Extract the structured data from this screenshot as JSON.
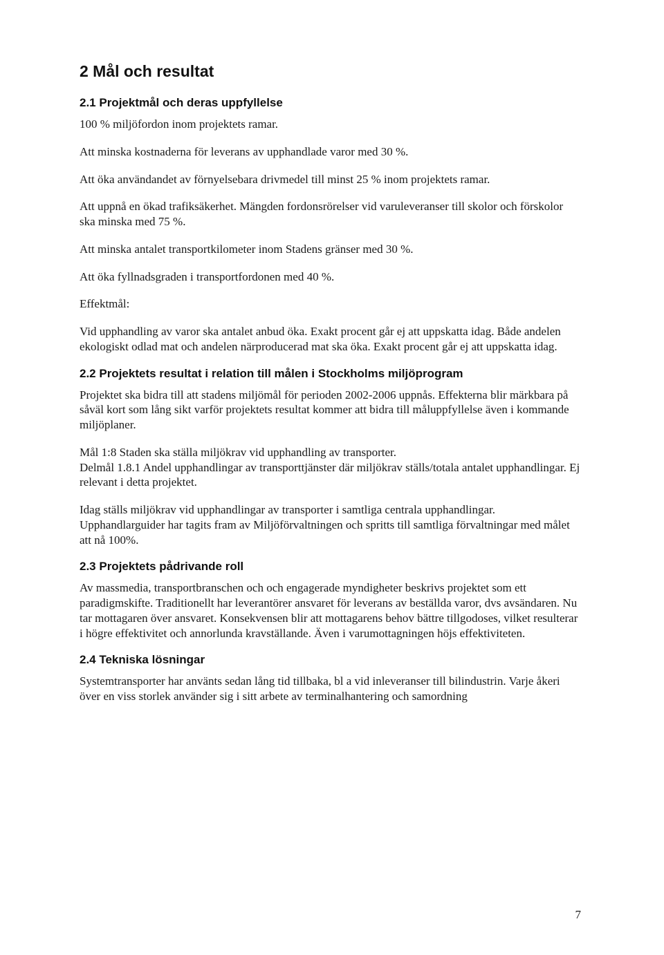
{
  "heading_main": "2 Mål och resultat",
  "s21": {
    "title": "2.1 Projektmål och deras uppfyllelse",
    "p1": "100 % miljöfordon inom projektets ramar.",
    "p2": "Att minska kostnaderna för leverans av upphandlade varor med 30 %.",
    "p3": "Att öka användandet av förnyelsebara drivmedel till minst 25 % inom projektets ramar.",
    "p4": "Att uppnå en ökad trafiksäkerhet. Mängden fordonsrörelser vid varuleveranser till skolor och förskolor ska minska med 75 %.",
    "p5": "Att minska antalet transportkilometer inom Stadens gränser med 30 %.",
    "p6": "Att öka fyllnadsgraden i transportfordonen med 40 %.",
    "p7": "Effektmål:",
    "p8": "Vid upphandling av varor ska antalet anbud öka. Exakt procent går ej att uppskatta idag. Både andelen ekologiskt odlad mat och andelen närproducerad mat ska öka. Exakt procent går ej att uppskatta idag."
  },
  "s22": {
    "title": "2.2 Projektets resultat i relation till målen i Stockholms miljöprogram",
    "p1": "Projektet ska bidra till att stadens miljömål för perioden 2002-2006 uppnås. Effekterna blir märkbara på såväl kort som lång sikt varför projektets resultat kommer att bidra till måluppfyllelse även i kommande miljöplaner.",
    "p2": "Mål 1:8 Staden ska ställa miljökrav vid upphandling av transporter.\nDelmål 1.8.1 Andel upphandlingar av transporttjänster där miljökrav ställs/totala antalet upphandlingar. Ej relevant i detta projektet.",
    "p3": "Idag ställs miljökrav vid upphandlingar av transporter i samtliga centrala upphandlingar. Upphandlarguider har tagits fram av Miljöförvaltningen och spritts till samtliga förvaltningar med målet att nå 100%."
  },
  "s23": {
    "title": "2.3 Projektets pådrivande roll",
    "p1": "Av massmedia, transportbranschen och och engagerade myndigheter beskrivs projektet som ett paradigmskifte. Traditionellt har leverantörer ansvaret för leverans av beställda varor, dvs avsändaren. Nu tar mottagaren över ansvaret. Konsekvensen blir att mottagarens behov bättre tillgodoses, vilket resulterar i högre effektivitet och annorlunda kravställande. Även i varumottagningen höjs effektiviteten."
  },
  "s24": {
    "title": "2.4 Tekniska lösningar",
    "p1": "Systemtransporter har använts sedan lång tid tillbaka, bl a vid inleveranser till bilindustrin. Varje åkeri över en viss storlek använder sig i sitt arbete av terminalhantering och samordning"
  },
  "page_number": "7"
}
